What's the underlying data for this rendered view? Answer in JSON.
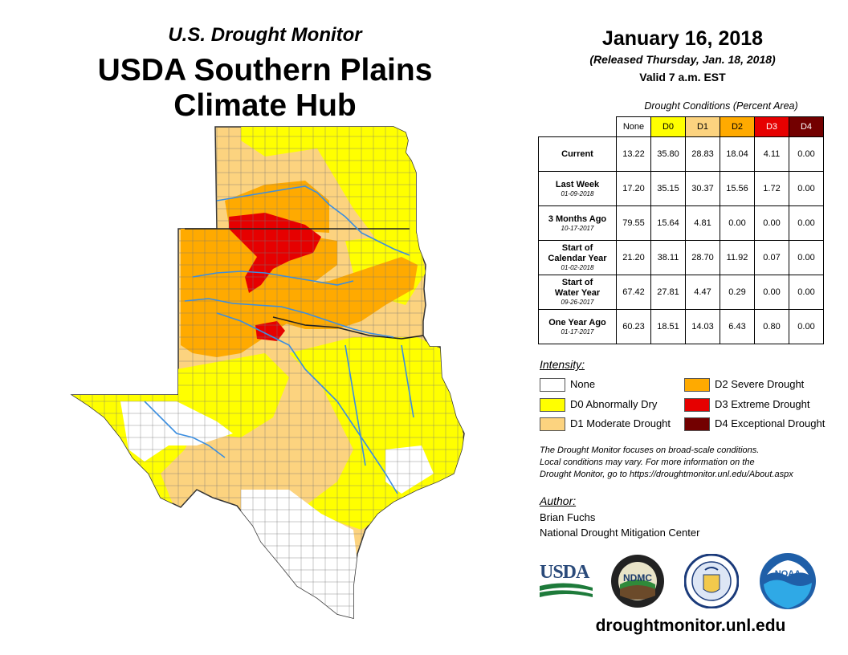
{
  "header": {
    "subtitle": "U.S. Drought Monitor",
    "title_line1": "USDA Southern Plains",
    "title_line2": "Climate Hub",
    "date": "January 16, 2018",
    "released": "(Released Thursday, Jan. 18, 2018)",
    "valid": "Valid 7 a.m. EST"
  },
  "table": {
    "caption": "Drought Conditions (Percent Area)",
    "columns": [
      {
        "label": "None",
        "color": "#ffffff",
        "text_color": "#000000"
      },
      {
        "label": "D0",
        "color": "#ffff00",
        "text_color": "#000000"
      },
      {
        "label": "D1",
        "color": "#fcd37f",
        "text_color": "#000000"
      },
      {
        "label": "D2",
        "color": "#ffaa00",
        "text_color": "#000000"
      },
      {
        "label": "D3",
        "color": "#e60000",
        "text_color": "#ffffff"
      },
      {
        "label": "D4",
        "color": "#730000",
        "text_color": "#ffffff"
      }
    ],
    "rows": [
      {
        "label": "Current",
        "label2": "",
        "date": "",
        "values": [
          "13.22",
          "35.80",
          "28.83",
          "18.04",
          "4.11",
          "0.00"
        ]
      },
      {
        "label": "Last Week",
        "label2": "",
        "date": "01-09-2018",
        "values": [
          "17.20",
          "35.15",
          "30.37",
          "15.56",
          "1.72",
          "0.00"
        ]
      },
      {
        "label": "3 Months Ago",
        "label2": "",
        "date": "10-17-2017",
        "values": [
          "79.55",
          "15.64",
          "4.81",
          "0.00",
          "0.00",
          "0.00"
        ]
      },
      {
        "label": "Start of",
        "label2": "Calendar Year",
        "date": "01-02-2018",
        "values": [
          "21.20",
          "38.11",
          "28.70",
          "11.92",
          "0.07",
          "0.00"
        ]
      },
      {
        "label": "Start of",
        "label2": "Water Year",
        "date": "09-26-2017",
        "values": [
          "67.42",
          "27.81",
          "4.47",
          "0.29",
          "0.00",
          "0.00"
        ]
      },
      {
        "label": "One Year Ago",
        "label2": "",
        "date": "01-17-2017",
        "values": [
          "60.23",
          "18.51",
          "14.03",
          "6.43",
          "0.80",
          "0.00"
        ]
      }
    ]
  },
  "legend": {
    "title": "Intensity:",
    "items": [
      {
        "label": "None",
        "color": "#ffffff"
      },
      {
        "label": "D0 Abnormally Dry",
        "color": "#ffff00"
      },
      {
        "label": "D1 Moderate Drought",
        "color": "#fcd37f"
      },
      {
        "label": "D2 Severe Drought",
        "color": "#ffaa00"
      },
      {
        "label": "D3 Extreme Drought",
        "color": "#e60000"
      },
      {
        "label": "D4 Exceptional Drought",
        "color": "#730000"
      }
    ]
  },
  "note": {
    "line1": "The Drought Monitor focuses on broad-scale conditions.",
    "line2": "Local conditions may vary. For more information on the",
    "line3": "Drought Monitor, go to https://droughtmonitor.unl.edu/About.aspx"
  },
  "author": {
    "title": "Author:",
    "name": "Brian Fuchs",
    "org": "National Drought Mitigation Center"
  },
  "logos": {
    "usda": "USDA",
    "ndmc": "NDMC",
    "noaa": "NOAA"
  },
  "website": "droughtmonitor.unl.edu",
  "colors": {
    "none": "#ffffff",
    "d0": "#ffff00",
    "d1": "#fcd37f",
    "d2": "#ffaa00",
    "d3": "#e60000",
    "d4": "#730000",
    "river": "#3b8ee0",
    "border": "#555555"
  }
}
